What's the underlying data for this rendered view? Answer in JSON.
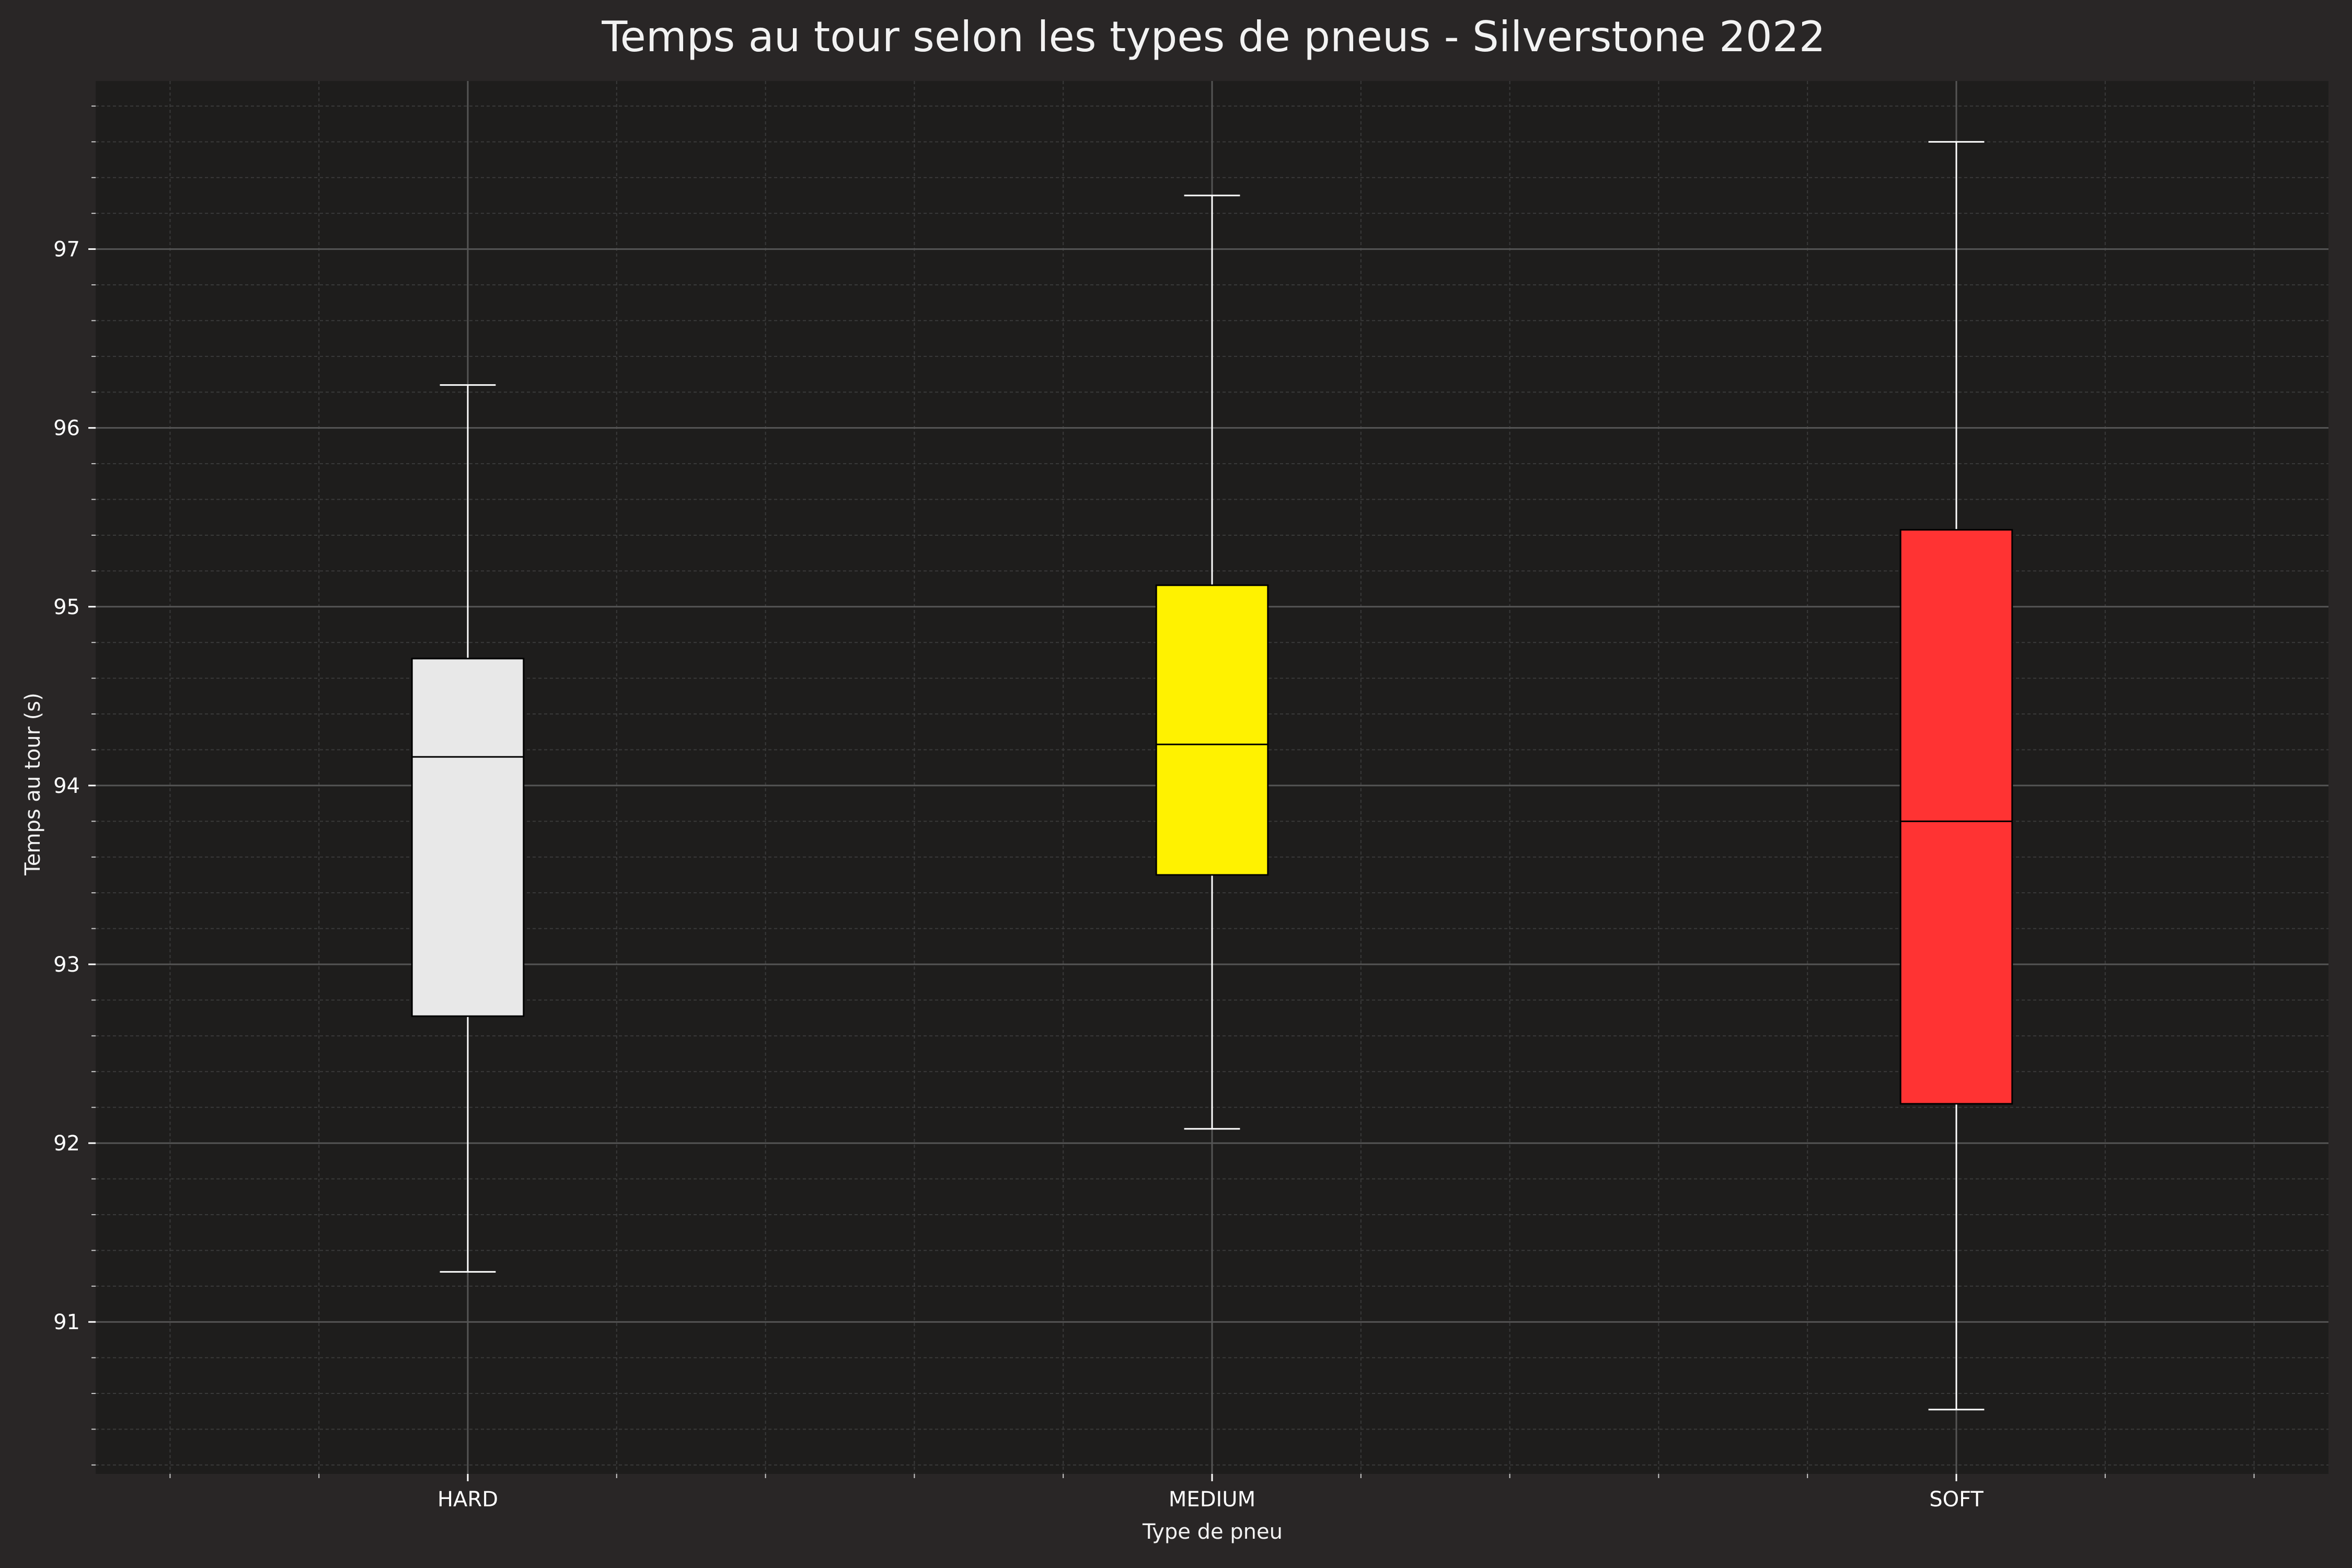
{
  "chart_data": {
    "type": "box",
    "title": "Temps au tour selon les types de pneus - Silverstone 2022",
    "xlabel": "Type de pneu",
    "ylabel": "Temps au tour (s)",
    "ylim": [
      90.15,
      97.94
    ],
    "yticks": [
      91,
      92,
      93,
      94,
      95,
      96,
      97
    ],
    "grid": "major and minor",
    "categories": [
      "HARD",
      "MEDIUM",
      "SOFT"
    ],
    "boxes": [
      {
        "category": "HARD",
        "whisker_low": 91.28,
        "q1": 92.71,
        "median": 94.16,
        "q3": 94.71,
        "whisker_high": 96.24,
        "color": "#e8e8e8"
      },
      {
        "category": "MEDIUM",
        "whisker_low": 92.08,
        "q1": 93.5,
        "median": 94.23,
        "q3": 95.12,
        "whisker_high": 97.3,
        "color": "#fff200"
      },
      {
        "category": "SOFT",
        "whisker_low": 90.51,
        "q1": 92.22,
        "median": 93.8,
        "q3": 95.43,
        "whisker_high": 97.6,
        "color": "#ff3333"
      }
    ],
    "colors": {
      "figure_bg": "#292626",
      "plot_bg": "#1e1d1c",
      "major_grid": "#555555",
      "minor_grid": "#3a3a3a",
      "whisker": "#ffffff",
      "box_edge": "#000000"
    }
  }
}
